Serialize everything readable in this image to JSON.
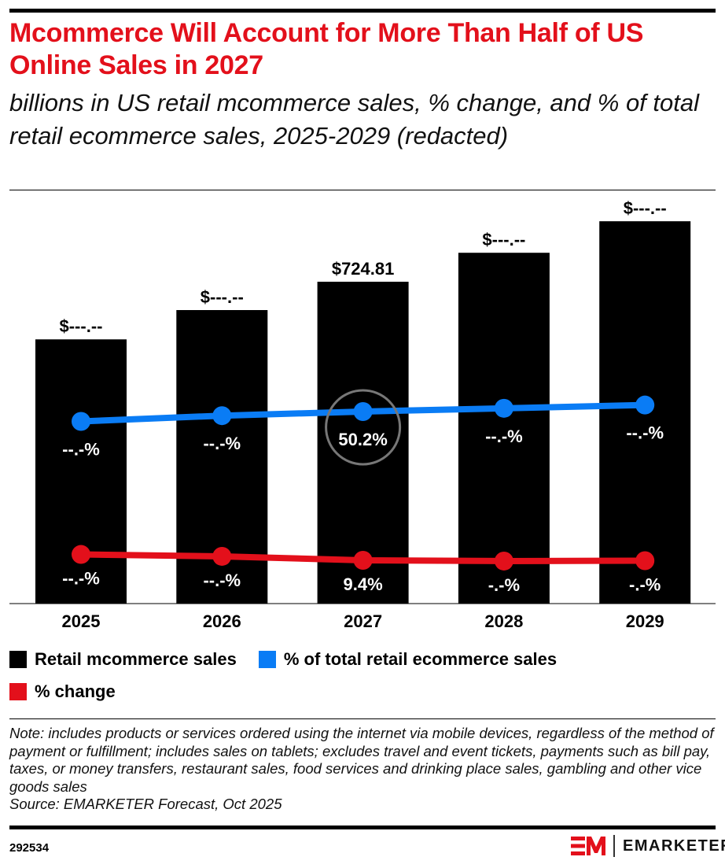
{
  "header": {
    "title": "Mcommerce Will Account for More Than Half of US Online Sales in 2027",
    "subtitle": "billions in US retail mcommerce sales, % change, and % of total retail ecommerce sales, 2025-2029 (redacted)"
  },
  "chart_data": {
    "type": "bar",
    "title": "Mcommerce Will Account for More Than Half of US Online Sales in 2027",
    "subtitle": "billions in US retail mcommerce sales, % change, and % of total retail ecommerce sales, 2025-2029 (redacted)",
    "categories": [
      "2025",
      "2026",
      "2027",
      "2028",
      "2029"
    ],
    "grid": false,
    "legend_placement": "bottom",
    "series": [
      {
        "name": "Retail mcommerce sales",
        "type": "bar",
        "color": "#000000",
        "values": [
          595,
          661,
          724.81,
          790,
          861
        ],
        "labels": [
          "$---.--",
          "$---.--",
          "$724.81",
          "$---.--",
          "$---.--"
        ]
      },
      {
        "name": "% of total retail ecommerce sales",
        "type": "line",
        "color": "#0a7cf5",
        "values": [
          47.8,
          49.2,
          50.2,
          51.0,
          51.8
        ],
        "labels": [
          "--.-%",
          "--.-%",
          "50.2%",
          "--.-%",
          "--.-%"
        ]
      },
      {
        "name": "% change",
        "type": "line",
        "color": "#e3101b",
        "values": [
          12.5,
          11.5,
          9.4,
          9.0,
          9.2
        ],
        "labels": [
          "--.-%",
          "--.-%",
          "9.4%",
          "-.-%",
          "-.-%"
        ]
      }
    ],
    "annotations": [
      {
        "type": "circle",
        "category": "2027",
        "series": "% of total retail ecommerce sales"
      }
    ]
  },
  "legend": [
    {
      "label": "Retail mcommerce sales",
      "color": "#000000"
    },
    {
      "label": "% of total retail ecommerce sales",
      "color": "#0a7cf5"
    },
    {
      "label": "% change",
      "color": "#e3101b"
    }
  ],
  "note": "Note: includes products or services ordered using the internet via mobile devices, regardless of the method of payment or fulfillment; includes sales on tablets; excludes travel and event tickets, payments such as bill pay, taxes, or money transfers, restaurant sales, food services and drinking place sales, gambling and other vice goods sales",
  "source": "Source: EMARKETER Forecast, Oct 2025",
  "footer": {
    "id": "292534",
    "brand": "EMARKETER"
  }
}
